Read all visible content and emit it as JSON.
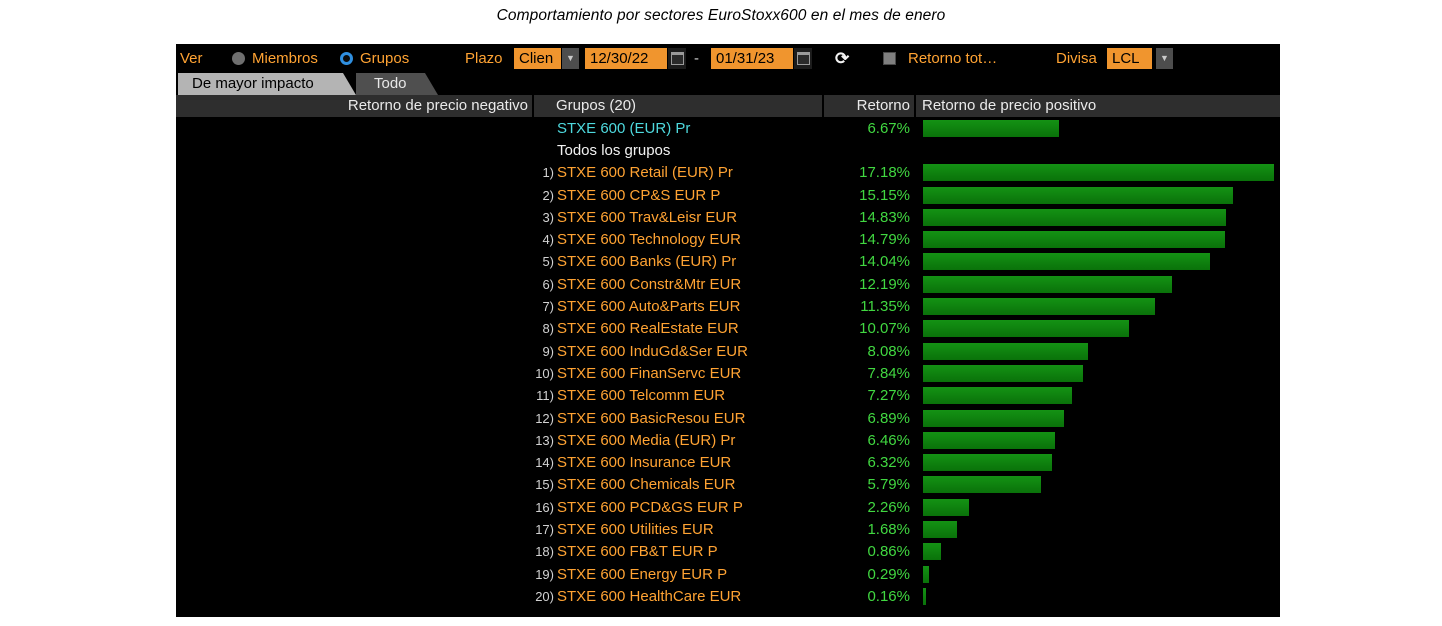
{
  "page_title": "Comportamiento por sectores EuroStoxx600 en el mes de enero",
  "toolbar": {
    "ver_label": "Ver",
    "radio_miembros_label": "Miembros",
    "radio_grupos_label": "Grupos",
    "radio_selected": "Grupos",
    "plazo_label": "Plazo",
    "plazo_value": "Clien",
    "date_start": "12/30/22",
    "date_separator": "-",
    "date_end": "01/31/23",
    "refresh_icon": "refresh",
    "retorno_total_label": "Retorno tot…",
    "retorno_total_checked": false,
    "divisa_label": "Divisa",
    "divisa_value": "LCL"
  },
  "tabs": {
    "active": "De mayor impacto",
    "inactive": "Todo"
  },
  "table_headers": {
    "negative": "Retorno de precio negativo",
    "groups": "Grupos (20)",
    "retorno": "Retorno",
    "positive": "Retorno de precio positivo"
  },
  "chart_data": {
    "type": "bar",
    "orientation": "horizontal",
    "title": "Comportamiento por sectores EuroStoxx600 en el mes de enero",
    "value_unit": "%",
    "xlim": [
      0,
      17.5
    ],
    "legend_position": "none",
    "grid": false,
    "benchmark_row": {
      "name": "STXE 600 (EUR) Pr",
      "value": 6.67,
      "label": "6.67%"
    },
    "group_header_row": "Todos los grupos",
    "rows": [
      {
        "rank": "1)",
        "name": "STXE 600 Retail (EUR) Pr",
        "value": 17.18,
        "label": "17.18%"
      },
      {
        "rank": "2)",
        "name": "STXE 600 CP&S EUR P",
        "value": 15.15,
        "label": "15.15%"
      },
      {
        "rank": "3)",
        "name": "STXE 600 Trav&Leisr EUR",
        "value": 14.83,
        "label": "14.83%"
      },
      {
        "rank": "4)",
        "name": "STXE 600 Technology EUR",
        "value": 14.79,
        "label": "14.79%"
      },
      {
        "rank": "5)",
        "name": "STXE 600 Banks (EUR) Pr",
        "value": 14.04,
        "label": "14.04%"
      },
      {
        "rank": "6)",
        "name": "STXE 600 Constr&Mtr EUR",
        "value": 12.19,
        "label": "12.19%"
      },
      {
        "rank": "7)",
        "name": "STXE 600 Auto&Parts EUR",
        "value": 11.35,
        "label": "11.35%"
      },
      {
        "rank": "8)",
        "name": "STXE 600 RealEstate EUR",
        "value": 10.07,
        "label": "10.07%"
      },
      {
        "rank": "9)",
        "name": "STXE 600 InduGd&Ser EUR",
        "value": 8.08,
        "label": "8.08%"
      },
      {
        "rank": "10)",
        "name": "STXE 600 FinanServc EUR",
        "value": 7.84,
        "label": "7.84%"
      },
      {
        "rank": "11)",
        "name": "STXE 600 Telcomm EUR",
        "value": 7.27,
        "label": "7.27%"
      },
      {
        "rank": "12)",
        "name": "STXE 600 BasicResou EUR",
        "value": 6.89,
        "label": "6.89%"
      },
      {
        "rank": "13)",
        "name": "STXE 600 Media (EUR) Pr",
        "value": 6.46,
        "label": "6.46%"
      },
      {
        "rank": "14)",
        "name": "STXE 600 Insurance EUR",
        "value": 6.32,
        "label": "6.32%"
      },
      {
        "rank": "15)",
        "name": "STXE 600 Chemicals EUR",
        "value": 5.79,
        "label": "5.79%"
      },
      {
        "rank": "16)",
        "name": "STXE 600 PCD&GS EUR P",
        "value": 2.26,
        "label": "2.26%"
      },
      {
        "rank": "17)",
        "name": "STXE 600 Utilities EUR",
        "value": 1.68,
        "label": "1.68%"
      },
      {
        "rank": "18)",
        "name": "STXE 600 FB&T EUR P",
        "value": 0.86,
        "label": "0.86%"
      },
      {
        "rank": "19)",
        "name": "STXE 600 Energy EUR P",
        "value": 0.29,
        "label": "0.29%"
      },
      {
        "rank": "20)",
        "name": "STXE 600 HealthCare EUR",
        "value": 0.16,
        "label": "0.16%"
      }
    ]
  },
  "colors": {
    "amber_text": "#ffa333",
    "amber_box": "#f0952e",
    "green_value_text": "#41d841",
    "bar_green": "#0e830e",
    "cyan_index_text": "#4ed9de",
    "radio_selected_blue": "#2f8fe0",
    "header_bg": "#2e2e2e",
    "panel_bg": "#000000"
  }
}
